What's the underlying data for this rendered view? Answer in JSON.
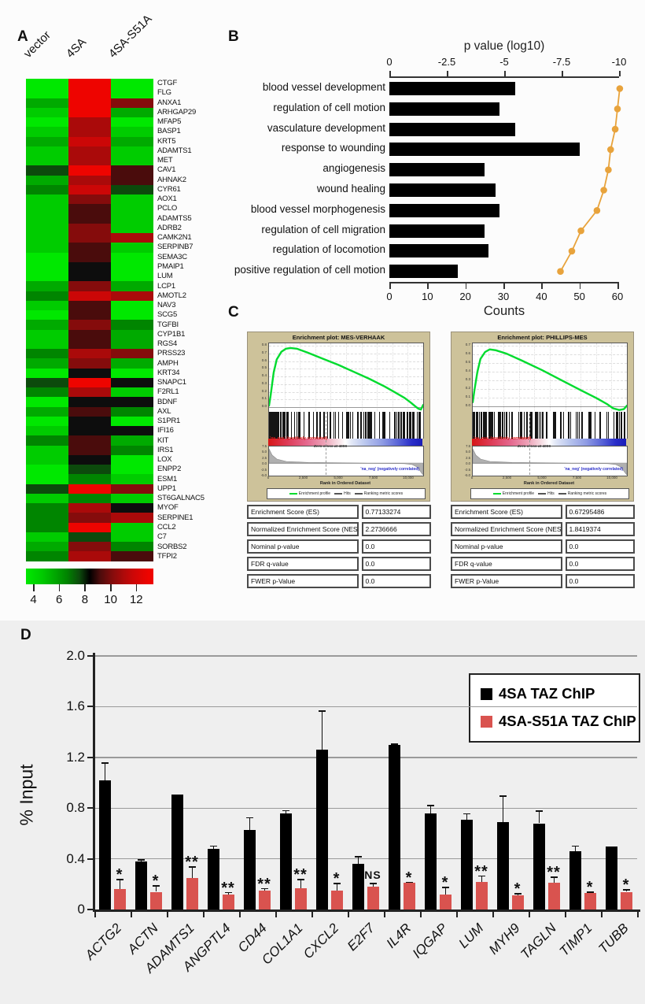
{
  "panels": {
    "a": "A",
    "b": "B",
    "c": "C",
    "d": "D"
  },
  "colors": {
    "go_bar_black": "#000000",
    "go_dot_orange": "#E8A33C",
    "chip_bar_black": "#000000",
    "chip_bar_red": "#D9534F",
    "gsea_bg_tan": "#CDC29A",
    "gsea_curve_green": "#00DB2E",
    "heatmap_green_max": "#00E800",
    "heatmap_red_max": "#EE0400"
  },
  "chart_data": [
    {
      "id": "expression_heatmap",
      "type": "heatmap",
      "columns": [
        "vector",
        "4SA",
        "4SA-S51A"
      ],
      "palette": {
        "G3": "#00e800",
        "G2": "#00cc00",
        "G1": "#00aa00",
        "G0": "#008500",
        "GD": "#0c4a0c",
        "K": "#0d0d0d",
        "RD": "#4a0c0c",
        "R0": "#850c0c",
        "R1": "#aa0a0a",
        "R2": "#cc0707",
        "R3": "#ee0400"
      },
      "genes": [
        "CTGF",
        "FLG",
        "ANXA1",
        "ARHGAP29",
        "MFAP5",
        "BASP1",
        "KRT5",
        "ADAMTS1",
        "MET",
        "CAV1",
        "AHNAK2",
        "CYR61",
        "AOX1",
        "PCLO",
        "ADAMTS5",
        "ADRB2",
        "CAMK2N1",
        "SERPINB7",
        "SEMA3C",
        "PMAIP1",
        "LUM",
        "LCP1",
        "AMOTL2",
        "NAV3",
        "SCG5",
        "TGFBI",
        "CYP1B1",
        "RGS4",
        "PRSS23",
        "AMPH",
        "KRT34",
        "SNAPC1",
        "F2RL1",
        "BDNF",
        "AXL",
        "S1PR1",
        "IFI16",
        "KIT",
        "IRS1",
        "LOX",
        "ENPP2",
        "ESM1",
        "UPP1",
        "ST6GALNAC5",
        "MYOF",
        "SERPINE1",
        "CCL2",
        "C7",
        "SORBS2",
        "TFPI2"
      ],
      "cells": [
        [
          "G3",
          "R3",
          "G3"
        ],
        [
          "G3",
          "R3",
          "G3"
        ],
        [
          "G1",
          "R3",
          "R0"
        ],
        [
          "G2",
          "R3",
          "G1"
        ],
        [
          "G3",
          "R1",
          "G3"
        ],
        [
          "G2",
          "R1",
          "G2"
        ],
        [
          "G1",
          "R2",
          "G1"
        ],
        [
          "G2",
          "R1",
          "G2"
        ],
        [
          "G2",
          "R1",
          "G2"
        ],
        [
          "GD",
          "R3",
          "RD"
        ],
        [
          "G1",
          "R1",
          "RD"
        ],
        [
          "G0",
          "R2",
          "GD"
        ],
        [
          "G2",
          "R0",
          "G2"
        ],
        [
          "G2",
          "RD",
          "G2"
        ],
        [
          "G2",
          "RD",
          "G2"
        ],
        [
          "G2",
          "R0",
          "G2"
        ],
        [
          "G2",
          "R0",
          "R1"
        ],
        [
          "G2",
          "RD",
          "G2"
        ],
        [
          "G3",
          "RD",
          "G3"
        ],
        [
          "G3",
          "K",
          "G3"
        ],
        [
          "G3",
          "K",
          "G3"
        ],
        [
          "G1",
          "R0",
          "G1"
        ],
        [
          "G0",
          "R2",
          "R1"
        ],
        [
          "G2",
          "RD",
          "G3"
        ],
        [
          "G3",
          "RD",
          "G3"
        ],
        [
          "G1",
          "R0",
          "G0"
        ],
        [
          "G2",
          "RD",
          "G1"
        ],
        [
          "G2",
          "RD",
          "G1"
        ],
        [
          "G0",
          "R1",
          "R0"
        ],
        [
          "G1",
          "R0",
          "G1"
        ],
        [
          "G3",
          "K",
          "G3"
        ],
        [
          "GD",
          "R3",
          "K"
        ],
        [
          "G0",
          "R1",
          "G2"
        ],
        [
          "G3",
          "K",
          "K"
        ],
        [
          "G1",
          "RD",
          "G0"
        ],
        [
          "G3",
          "K",
          "G3"
        ],
        [
          "G2",
          "K",
          "K"
        ],
        [
          "G0",
          "RD",
          "G1"
        ],
        [
          "G2",
          "RD",
          "G0"
        ],
        [
          "G2",
          "K",
          "G3"
        ],
        [
          "G3",
          "GD",
          "G3"
        ],
        [
          "G3",
          "G0",
          "G2"
        ],
        [
          "GD",
          "R3",
          "R0"
        ],
        [
          "G2",
          "G0",
          "G2"
        ],
        [
          "G0",
          "R1",
          "K"
        ],
        [
          "G0",
          "R0",
          "R1"
        ],
        [
          "G0",
          "R3",
          "G2"
        ],
        [
          "G2",
          "GD",
          "G2"
        ],
        [
          "G1",
          "R0",
          "G0"
        ],
        [
          "G0",
          "R1",
          "RD"
        ]
      ],
      "colorbar_ticks": [
        "4",
        "6",
        "8",
        "10",
        "12"
      ]
    },
    {
      "id": "go_enrichment",
      "type": "bar",
      "orientation": "horizontal",
      "categories": [
        "blood vessel development",
        "regulation of cell motion",
        "vasculature development",
        "response to wounding",
        "angiogenesis",
        "wound healing",
        "blood vessel morphogenesis",
        "regulation of cell migration",
        "regulation of locomotion",
        "positive regulation of cell motion"
      ],
      "series": [
        {
          "name": "Counts",
          "values": [
            33,
            29,
            33,
            50,
            25,
            28,
            29,
            25,
            26,
            18
          ],
          "color": "#000000",
          "axis": "bottom"
        },
        {
          "name": "p value (log10)",
          "values": [
            -10.1,
            -10.0,
            -9.9,
            -9.7,
            -9.6,
            -9.4,
            -9.1,
            -8.4,
            -8.0,
            -7.5
          ],
          "color": "#E8A33C",
          "axis": "top",
          "style": "line+markers"
        }
      ],
      "top_axis": {
        "label": "p value (log10)",
        "tick_labels": [
          "0",
          "-2.5",
          "-5",
          "-7.5",
          "-10"
        ],
        "range": [
          0,
          -10
        ]
      },
      "bottom_axis": {
        "label": "Counts",
        "tick_labels": [
          "0",
          "10",
          "20",
          "30",
          "40",
          "50",
          "60"
        ],
        "range": [
          0,
          60
        ]
      }
    },
    {
      "id": "gsea_enrichment",
      "type": "line",
      "shared": {
        "ylabel_top": "Enrichment score (ES)",
        "ylabel_bottom": "Ranked list metric (PreRanked)",
        "xlabel": "Rank in Ordered Dataset",
        "x_tick_labels": [
          "0",
          "2,500",
          "5,000",
          "7,500",
          "10,000"
        ],
        "metric_y_ticks": [
          "7.5",
          "5.0",
          "2.5",
          "0.0",
          "-2.5",
          "-5.0"
        ],
        "pos_label": "'na_pos' (positively correlated)",
        "neg_label": "'na_neg' (negatively correlated)",
        "zero_cross_label": "Zero cross at 4099",
        "legend": [
          "Enrichment profile",
          "Hits",
          "Ranking metric scores"
        ]
      },
      "plots": [
        {
          "title": "Enrichment plot: MES-VERHAAK",
          "es_max": 0.8,
          "es_y_ticks": [
            "0.8",
            "0.7",
            "0.6",
            "0.5",
            "0.4",
            "0.3",
            "0.2",
            "0.1",
            "0.0"
          ],
          "curve": [
            [
              0,
              0.02
            ],
            [
              0.01,
              0.15
            ],
            [
              0.03,
              0.45
            ],
            [
              0.05,
              0.62
            ],
            [
              0.08,
              0.72
            ],
            [
              0.11,
              0.76
            ],
            [
              0.14,
              0.77
            ],
            [
              0.18,
              0.76
            ],
            [
              0.25,
              0.71
            ],
            [
              0.35,
              0.63
            ],
            [
              0.45,
              0.55
            ],
            [
              0.55,
              0.46
            ],
            [
              0.65,
              0.37
            ],
            [
              0.75,
              0.27
            ],
            [
              0.82,
              0.19
            ],
            [
              0.88,
              0.12
            ],
            [
              0.92,
              0.06
            ],
            [
              0.95,
              0.01
            ],
            [
              0.97,
              -0.02
            ],
            [
              0.985,
              -0.03
            ],
            [
              1,
              0.03
            ]
          ],
          "table": [
            {
              "label": "Enrichment Score (ES)",
              "value": "0.77133274"
            },
            {
              "label": "Normalized Enrichment Score (NES)",
              "value": "2.2736666"
            },
            {
              "label": "Nominal p-value",
              "value": "0.0"
            },
            {
              "label": "FDR q-value",
              "value": "0.0"
            },
            {
              "label": "FWER p-Value",
              "value": "0.0"
            }
          ]
        },
        {
          "title": "Enrichment plot: PHILLIPS-MES",
          "es_max": 0.7,
          "es_y_ticks": [
            "0.7",
            "0.6",
            "0.5",
            "0.4",
            "0.3",
            "0.2",
            "0.1",
            "0.0"
          ],
          "curve": [
            [
              0,
              0.05
            ],
            [
              0.01,
              0.18
            ],
            [
              0.03,
              0.4
            ],
            [
              0.05,
              0.55
            ],
            [
              0.08,
              0.63
            ],
            [
              0.11,
              0.66
            ],
            [
              0.15,
              0.65
            ],
            [
              0.22,
              0.61
            ],
            [
              0.32,
              0.53
            ],
            [
              0.45,
              0.42
            ],
            [
              0.58,
              0.3
            ],
            [
              0.7,
              0.19
            ],
            [
              0.8,
              0.1
            ],
            [
              0.87,
              0.03
            ],
            [
              0.91,
              -0.02
            ],
            [
              0.95,
              -0.04
            ],
            [
              0.98,
              -0.03
            ],
            [
              1,
              0.01
            ]
          ],
          "table": [
            {
              "label": "Enrichment Score (ES)",
              "value": "0.67295486"
            },
            {
              "label": "Normalized Enrichment Score (NES)",
              "value": "1.8419374"
            },
            {
              "label": "Nominal p-value",
              "value": "0.0"
            },
            {
              "label": "FDR q-value",
              "value": "0.0"
            },
            {
              "label": "FWER p-Value",
              "value": "0.0"
            }
          ]
        }
      ]
    },
    {
      "id": "taz_chip_qpcr",
      "type": "bar",
      "categories": [
        "ACTG2",
        "ACTN",
        "ADAMTS1",
        "ANGPTL4",
        "CD44",
        "COL1A1",
        "CXCL2",
        "E2F7",
        "IL4R",
        "IQGAP",
        "LUM",
        "MYH9",
        "TAGLN",
        "TIMP1",
        "TUBB"
      ],
      "series": [
        {
          "name": "4SA TAZ ChIP",
          "color": "#000000",
          "values": [
            1.02,
            0.38,
            0.91,
            0.48,
            0.63,
            0.76,
            1.26,
            0.36,
            1.3,
            0.76,
            0.71,
            0.69,
            0.68,
            0.46,
            0.5
          ],
          "errors": [
            0.14,
            0.015,
            0.0,
            0.025,
            0.1,
            0.025,
            0.31,
            0.06,
            0.01,
            0.065,
            0.05,
            0.21,
            0.1,
            0.045,
            0.0
          ]
        },
        {
          "name": "4SA-S51A TAZ ChIP",
          "color": "#D9534F",
          "values": [
            0.16,
            0.14,
            0.25,
            0.12,
            0.15,
            0.17,
            0.15,
            0.18,
            0.21,
            0.12,
            0.22,
            0.11,
            0.21,
            0.13,
            0.14
          ],
          "errors": [
            0.08,
            0.05,
            0.09,
            0.02,
            0.02,
            0.07,
            0.06,
            0.03,
            0.01,
            0.06,
            0.05,
            0.02,
            0.05,
            0.012,
            0.02
          ]
        }
      ],
      "significance": [
        "*",
        "*",
        "**",
        "**",
        "**",
        "**",
        "*",
        "NS",
        "*",
        "*",
        "**",
        "*",
        "**",
        "*",
        "*"
      ],
      "ylabel": "% Input",
      "y_ticks": [
        "0",
        "0.4",
        "0.8",
        "1.2",
        "1.6",
        "2.0"
      ],
      "ylim": [
        0,
        2.0
      ],
      "grid": true,
      "legend_position": "top-right"
    }
  ]
}
